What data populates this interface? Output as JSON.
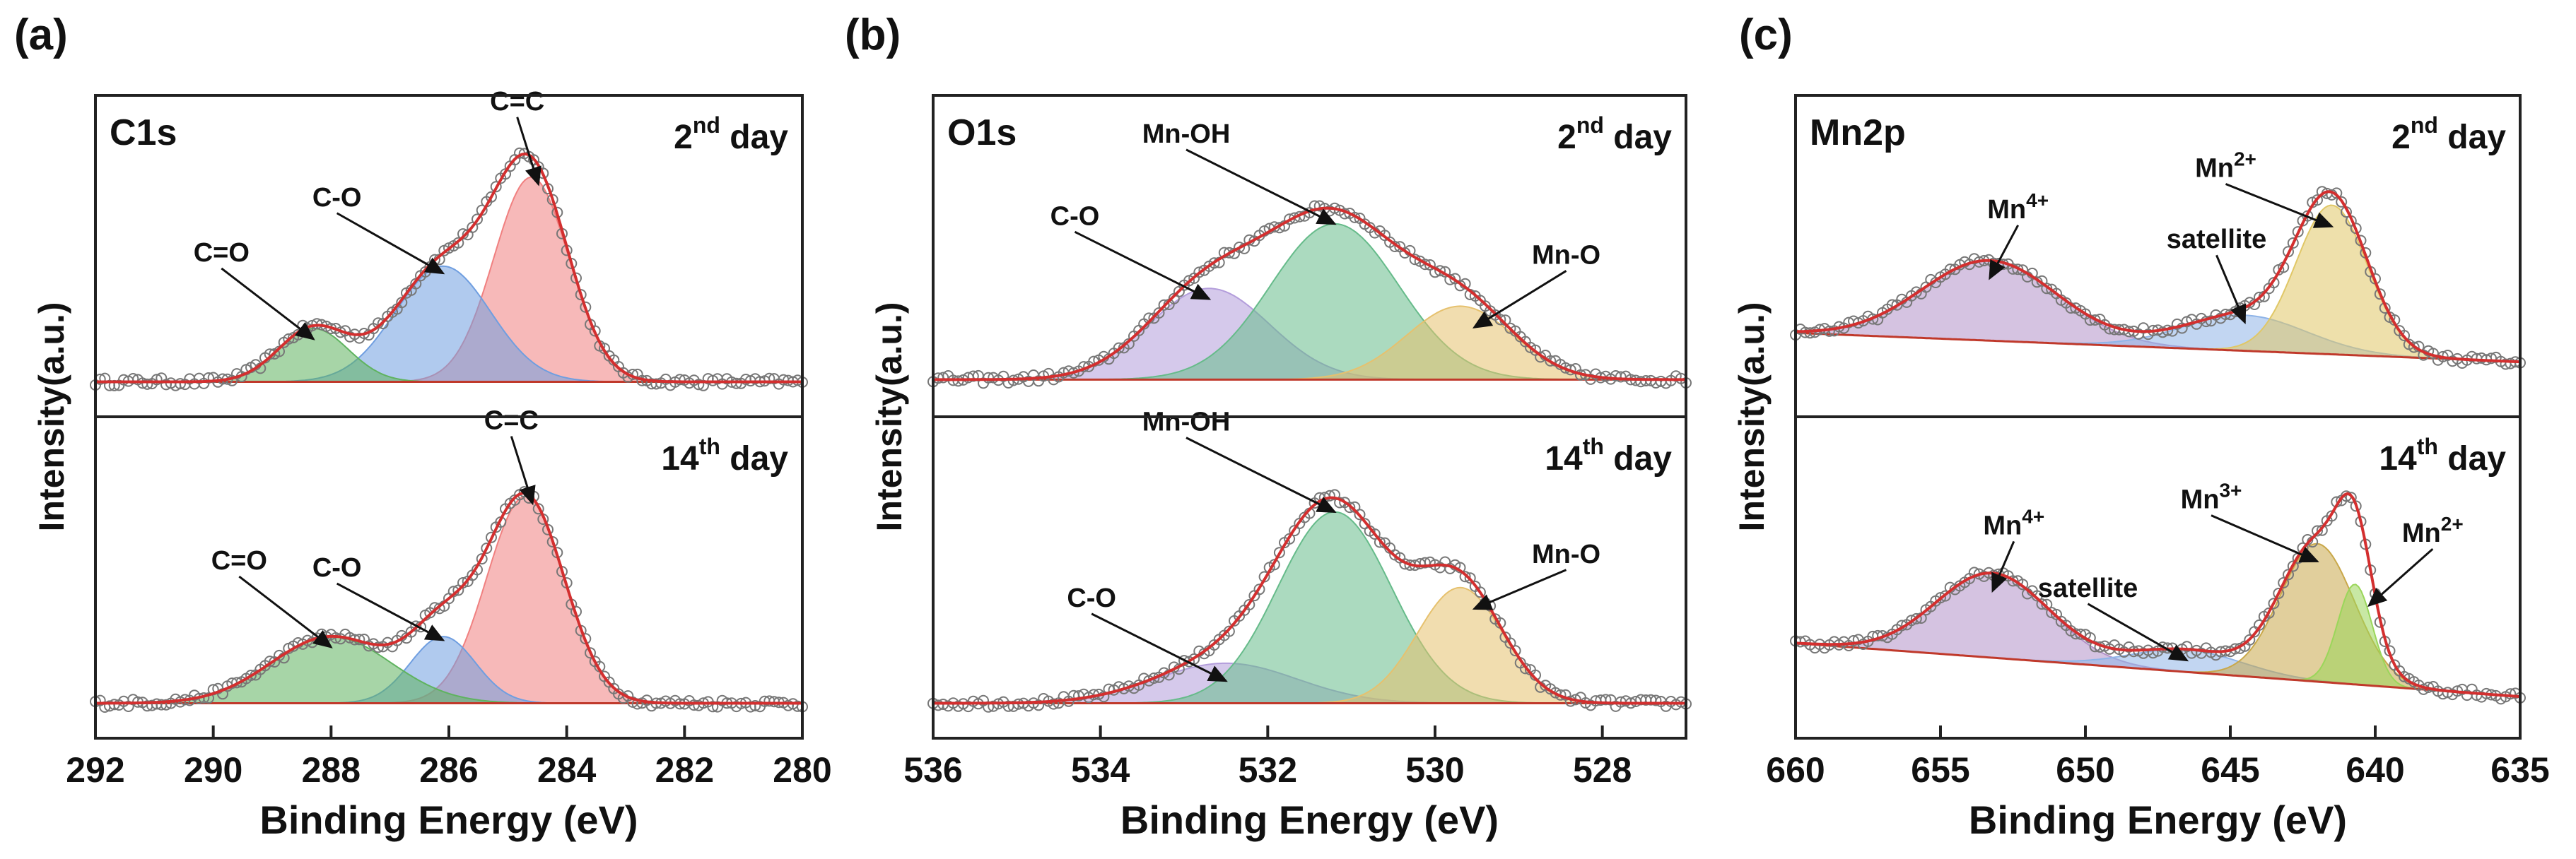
{
  "figure": {
    "description_labels": [
      "(a)",
      "(b)",
      "(c)"
    ]
  },
  "chart_data": [
    {
      "type": "line",
      "panel_label": "(a)",
      "title": "C1s",
      "xlabel": "Binding Energy (eV)",
      "ylabel": "Intensity(a.u.)",
      "xlim": [
        292,
        280
      ],
      "xticks": [
        292,
        290,
        288,
        286,
        284,
        282,
        280
      ],
      "xtick_labels": [
        "292",
        "290",
        "288",
        "286",
        "284",
        "282",
        "280"
      ],
      "spectra": [
        {
          "day_label": {
            "number": "2",
            "sup": "nd",
            "text": "day"
          },
          "baseline": [
            0.03,
            0.03
          ],
          "peaks": [
            {
              "label": "C=C",
              "center": 284.6,
              "height": 0.92,
              "fwhm": 1.5,
              "color": "#f08080"
            },
            {
              "label": "C-O",
              "center": 286.1,
              "height": 0.52,
              "fwhm": 1.9,
              "color": "#6f9ee0"
            },
            {
              "label": "C=O",
              "center": 288.3,
              "height": 0.24,
              "fwhm": 1.4,
              "color": "#5fb35f"
            }
          ]
        },
        {
          "day_label": {
            "number": "14",
            "sup": "th",
            "text": "day"
          },
          "baseline": [
            0.03,
            0.03
          ],
          "peaks": [
            {
              "label": "C=C",
              "center": 284.7,
              "height": 0.93,
              "fwhm": 1.55,
              "color": "#f08080"
            },
            {
              "label": "C-O",
              "center": 286.1,
              "height": 0.3,
              "fwhm": 1.3,
              "color": "#6f9ee0"
            },
            {
              "label": "C=O",
              "center": 288.0,
              "height": 0.3,
              "fwhm": 2.4,
              "color": "#5fb35f"
            }
          ]
        }
      ]
    },
    {
      "type": "line",
      "panel_label": "(b)",
      "title": "O1s",
      "xlabel": "Binding Energy (eV)",
      "ylabel": "Intensity(a.u.)",
      "xlim": [
        536,
        527
      ],
      "xticks": [
        536,
        534,
        532,
        530,
        528
      ],
      "xtick_labels": [
        "536",
        "534",
        "532",
        "530",
        "528"
      ],
      "spectra": [
        {
          "day_label": {
            "number": "2",
            "sup": "nd",
            "text": "day"
          },
          "baseline": [
            0.04,
            0.04
          ],
          "peaks": [
            {
              "label": "C-O",
              "center": 532.7,
              "height": 0.41,
              "fwhm": 1.7,
              "color": "#b39ddb"
            },
            {
              "label": "Mn-OH",
              "center": 531.2,
              "height": 0.7,
              "fwhm": 1.8,
              "color": "#66bb8a"
            },
            {
              "label": "Mn-O",
              "center": 529.7,
              "height": 0.33,
              "fwhm": 1.5,
              "color": "#e6c16e"
            }
          ]
        },
        {
          "day_label": {
            "number": "14",
            "sup": "th",
            "text": "day"
          },
          "baseline": [
            0.03,
            0.03
          ],
          "peaks": [
            {
              "label": "C-O",
              "center": 532.5,
              "height": 0.18,
              "fwhm": 2.0,
              "color": "#b39ddb"
            },
            {
              "label": "Mn-OH",
              "center": 531.2,
              "height": 0.86,
              "fwhm": 1.6,
              "color": "#66bb8a"
            },
            {
              "label": "Mn-O",
              "center": 529.7,
              "height": 0.52,
              "fwhm": 1.2,
              "color": "#e6c16e"
            }
          ]
        }
      ]
    },
    {
      "type": "line",
      "panel_label": "(c)",
      "title": "Mn2p",
      "xlabel": "Binding Energy (eV)",
      "ylabel": "Intensity(a.u.)",
      "xlim": [
        660,
        635
      ],
      "xticks": [
        660,
        655,
        650,
        645,
        640,
        635
      ],
      "xtick_labels": [
        "660",
        "655",
        "650",
        "645",
        "640",
        "635"
      ],
      "spectra": [
        {
          "day_label": {
            "number": "2",
            "sup": "nd",
            "text": "day"
          },
          "baseline": [
            0.25,
            0.12
          ],
          "peaks": [
            {
              "label": "Mn4+",
              "center": 653.3,
              "height": 0.36,
              "fwhm": 5.5,
              "color": "#b392c8"
            },
            {
              "label": "satellite",
              "center": 644.5,
              "height": 0.16,
              "fwhm": 5.0,
              "color": "#8fb4e8"
            },
            {
              "label": "Mn2+",
              "center": 641.5,
              "height": 0.67,
              "fwhm": 2.9,
              "color": "#e0c766"
            }
          ]
        },
        {
          "day_label": {
            "number": "14",
            "sup": "th",
            "text": "day"
          },
          "baseline": [
            0.3,
            0.06
          ],
          "peaks": [
            {
              "label": "Mn4+",
              "center": 653.2,
              "height": 0.38,
              "fwhm": 4.6,
              "color": "#b392c8"
            },
            {
              "label": "satellite",
              "center": 646.5,
              "height": 0.1,
              "fwhm": 4.5,
              "color": "#8fb4e8"
            },
            {
              "label": "Mn3+",
              "center": 642.0,
              "height": 0.62,
              "fwhm": 3.0,
              "color": "#c9a84a"
            },
            {
              "label": "Mn2+",
              "center": 640.7,
              "height": 0.45,
              "fwhm": 1.4,
              "color": "#9ad65a"
            }
          ]
        }
      ]
    }
  ]
}
